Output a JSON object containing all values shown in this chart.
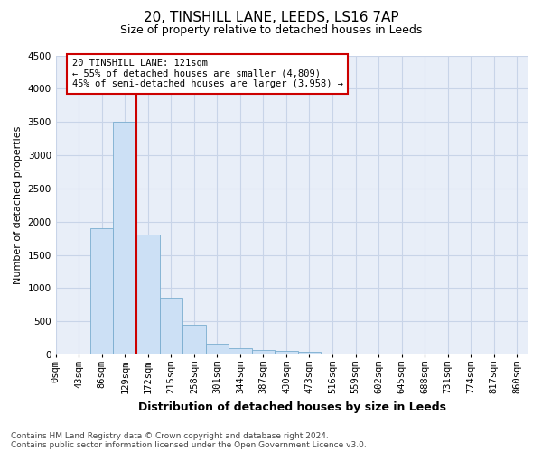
{
  "title1": "20, TINSHILL LANE, LEEDS, LS16 7AP",
  "title2": "Size of property relative to detached houses in Leeds",
  "xlabel": "Distribution of detached houses by size in Leeds",
  "ylabel": "Number of detached properties",
  "bin_labels": [
    "0sqm",
    "43sqm",
    "86sqm",
    "129sqm",
    "172sqm",
    "215sqm",
    "258sqm",
    "301sqm",
    "344sqm",
    "387sqm",
    "430sqm",
    "473sqm",
    "516sqm",
    "559sqm",
    "602sqm",
    "645sqm",
    "688sqm",
    "731sqm",
    "774sqm",
    "817sqm",
    "860sqm"
  ],
  "bar_values": [
    20,
    1900,
    3500,
    1800,
    850,
    450,
    160,
    100,
    70,
    50,
    40,
    0,
    0,
    0,
    0,
    0,
    0,
    0,
    0,
    0
  ],
  "bar_color": "#cce0f5",
  "bar_edge_color": "#7aadcf",
  "grid_color": "#c8d4e8",
  "background_color": "#e8eef8",
  "vline_color": "#cc0000",
  "annotation_line1": "20 TINSHILL LANE: 121sqm",
  "annotation_line2": "← 55% of detached houses are smaller (4,809)",
  "annotation_line3": "45% of semi-detached houses are larger (3,958) →",
  "annotation_box_color": "#ffffff",
  "annotation_box_edge": "#cc0000",
  "ylim": [
    0,
    4500
  ],
  "yticks": [
    0,
    500,
    1000,
    1500,
    2000,
    2500,
    3000,
    3500,
    4000,
    4500
  ],
  "footer1": "Contains HM Land Registry data © Crown copyright and database right 2024.",
  "footer2": "Contains public sector information licensed under the Open Government Licence v3.0.",
  "title1_fontsize": 11,
  "title2_fontsize": 9,
  "ylabel_fontsize": 8,
  "xlabel_fontsize": 9,
  "tick_fontsize": 7.5,
  "annotation_fontsize": 7.5,
  "footer_fontsize": 6.5
}
